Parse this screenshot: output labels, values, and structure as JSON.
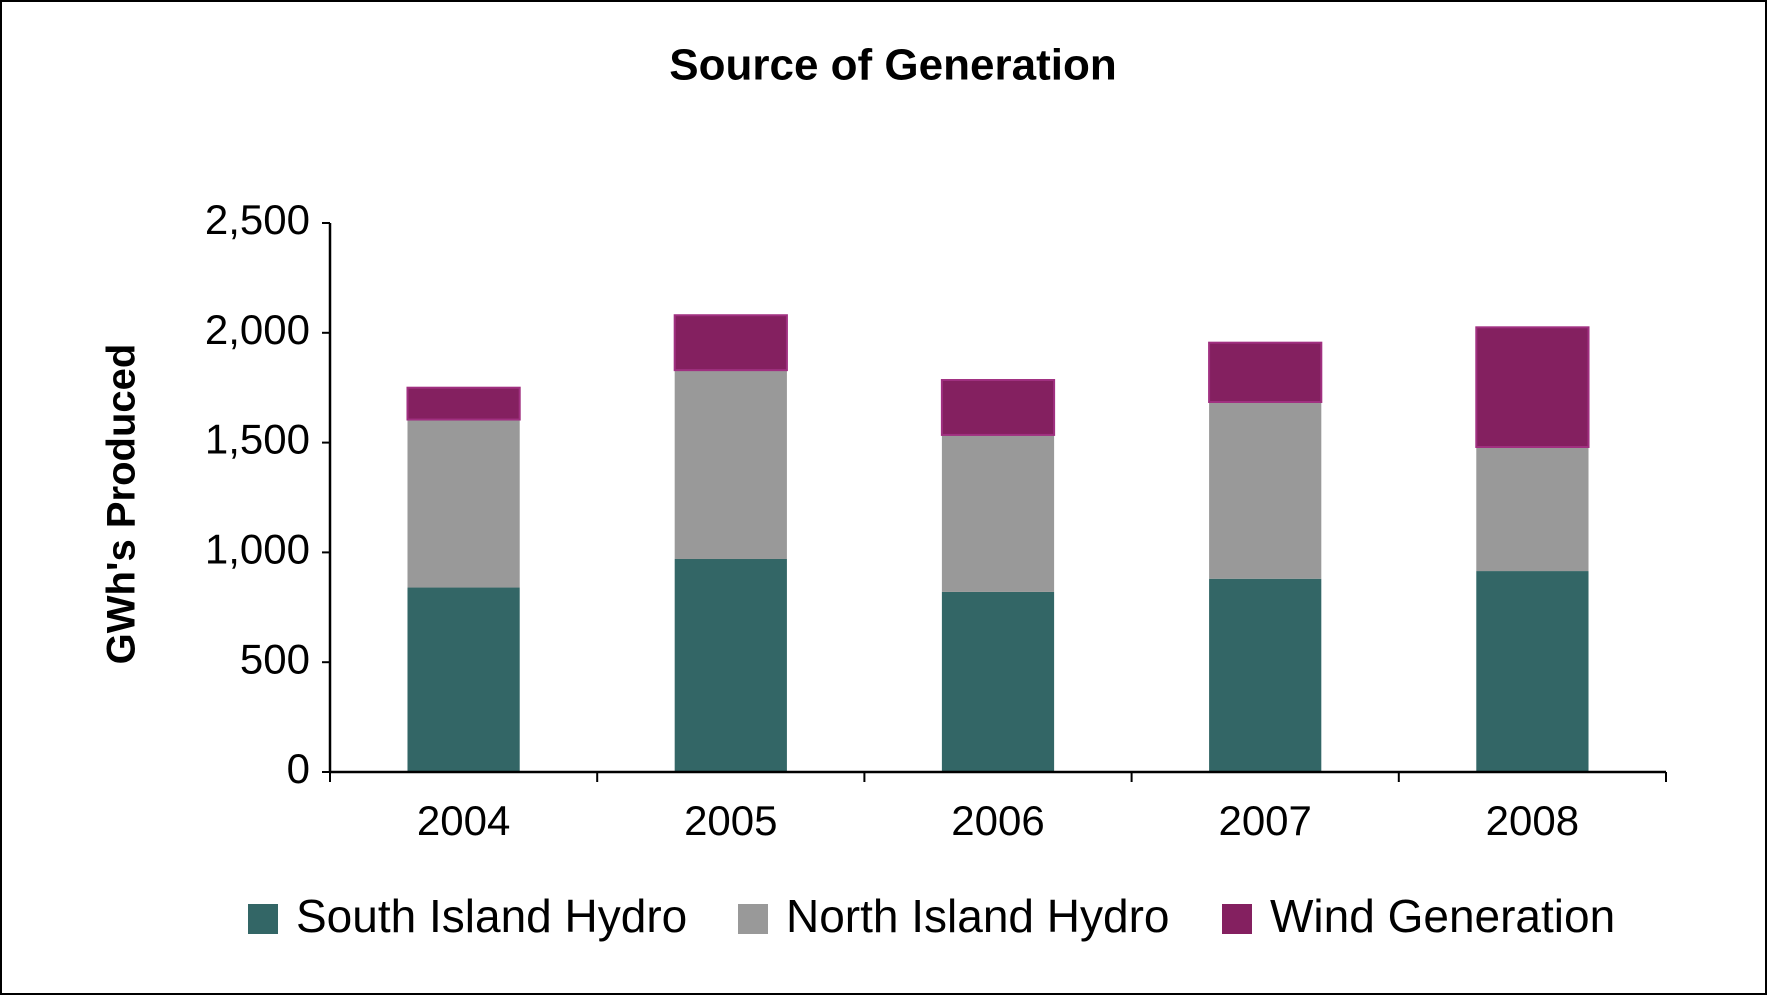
{
  "chart_data": {
    "type": "stacked_bar",
    "title": "Source of Generation",
    "y_label": "GWh's Produced",
    "categories": [
      "2004",
      "2005",
      "2006",
      "2007",
      "2008"
    ],
    "series": [
      {
        "name": "South Island Hydro",
        "color": "#336666",
        "values": [
          840,
          970,
          820,
          880,
          915
        ]
      },
      {
        "name": "North Island Hydro",
        "color": "#999999",
        "values": [
          765,
          860,
          715,
          805,
          565
        ]
      },
      {
        "name": "Wind Generation",
        "color": "#842060",
        "values": [
          145,
          250,
          250,
          270,
          545
        ]
      }
    ],
    "ylim": [
      0,
      2500
    ],
    "yticks": [
      0,
      500,
      {
        "value": 1000,
        "label": "1,000"
      },
      {
        "value": 1500,
        "label": "1,500"
      },
      {
        "value": 2000,
        "label": "2,000"
      },
      {
        "value": 2500,
        "label": "2,500"
      }
    ],
    "grid": false
  }
}
